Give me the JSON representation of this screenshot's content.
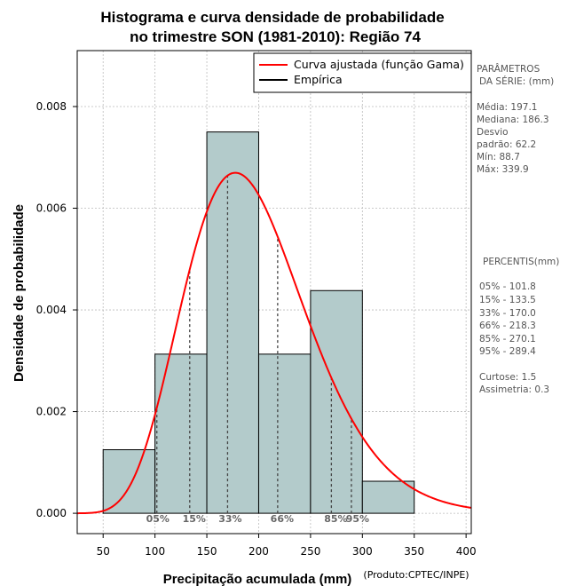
{
  "chart_data": {
    "type": "bar",
    "title_line1": "Histograma e curva densidade de probabilidade",
    "title_line2": "no trimestre SON (1981-2010): Região 74",
    "xlabel": "Precipitação acumulada (mm)",
    "ylabel": "Densidade de probabilidade",
    "credit": "(Produto:CPTEC/INPE)",
    "xlim": [
      25,
      405
    ],
    "ylim": [
      -0.0004,
      0.0091
    ],
    "xticks": [
      50,
      100,
      150,
      200,
      250,
      300,
      350,
      400
    ],
    "xtick_labels": [
      "50",
      "100",
      "150",
      "200",
      "250",
      "300",
      "350",
      "400"
    ],
    "yticks": [
      0.0,
      0.002,
      0.004,
      0.006,
      0.008
    ],
    "ytick_labels": [
      "0.000",
      "0.002",
      "0.004",
      "0.006",
      "0.008"
    ],
    "bins": [
      {
        "start": 50,
        "end": 100,
        "density": 0.00125
      },
      {
        "start": 100,
        "end": 150,
        "density": 0.00313
      },
      {
        "start": 150,
        "end": 200,
        "density": 0.0075
      },
      {
        "start": 200,
        "end": 250,
        "density": 0.00313
      },
      {
        "start": 250,
        "end": 300,
        "density": 0.00438
      },
      {
        "start": 300,
        "end": 350,
        "density": 0.00063
      }
    ],
    "gamma_fit": {
      "mean": 197.1,
      "sd": 62.2,
      "color": "#ff0000"
    },
    "percentile_markers": [
      {
        "label": "05%",
        "value": 101.8
      },
      {
        "label": "15%",
        "value": 133.5
      },
      {
        "label": "33%",
        "value": 170.0
      },
      {
        "label": "66%",
        "value": 218.3
      },
      {
        "label": "85%",
        "value": 270.1
      },
      {
        "label": "95%",
        "value": 289.4
      }
    ],
    "legend": {
      "position": "top-right",
      "entries": [
        {
          "label": "Curva ajustada (função Gama)",
          "color": "#ff0000"
        },
        {
          "label": "Empírica",
          "color": "#000000"
        }
      ]
    }
  },
  "side_panel": {
    "params_heading_1": "PARÂMETROS",
    "params_heading_2": "DA SÉRIE: (mm)",
    "media": "Média:  197.1",
    "mediana": "Mediana:  186.3",
    "desvio_1": "Desvio",
    "desvio_2": "padrão:  62.2",
    "min": "Mín:  88.7",
    "max": "Máx:  339.9",
    "percentis_heading": "PERCENTIS(mm)",
    "p05": "05% -   101.8",
    "p15": "15% -   133.5",
    "p33": "33% -   170.0",
    "p66": "66% -   218.3",
    "p85": "85% -   270.1",
    "p95": "95% -   289.4",
    "curtose": "Curtose:  1.5",
    "assimetria": "Assimetria:  0.3"
  }
}
